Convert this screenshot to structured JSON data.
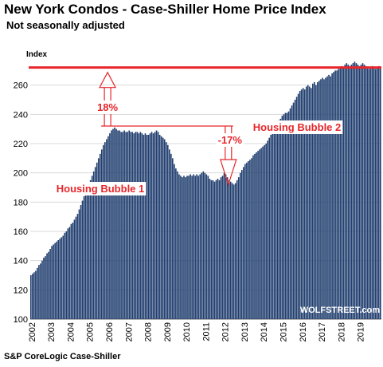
{
  "chart_data": {
    "type": "bar",
    "title": "New York Condos - Case-Shiller Home Price Index",
    "subtitle": "Not seasonally adjusted",
    "ylabel": "Index",
    "source": "S&P CoreLogic Case-Shiller",
    "watermark": "WOLFSTREET.com",
    "ylim": [
      100,
      280
    ],
    "yticks": [
      100,
      120,
      140,
      160,
      180,
      200,
      220,
      240,
      260
    ],
    "x_years": [
      "2002",
      "2003",
      "2004",
      "2005",
      "2006",
      "2007",
      "2008",
      "2009",
      "2010",
      "2011",
      "2012",
      "2013",
      "2014",
      "2015",
      "2016",
      "2017",
      "2018",
      "2019"
    ],
    "bar_color": "#1f3d6e",
    "x_start": "2002-01",
    "monthly_values": [
      130,
      131,
      132,
      133,
      135,
      137,
      138,
      140,
      142,
      143,
      145,
      146,
      148,
      150,
      151,
      152,
      153,
      154,
      155,
      156,
      157,
      159,
      160,
      162,
      163,
      165,
      166,
      168,
      170,
      172,
      175,
      178,
      181,
      184,
      186,
      189,
      192,
      195,
      198,
      201,
      204,
      207,
      210,
      213,
      216,
      219,
      221,
      223,
      225,
      227,
      229,
      230,
      231,
      230,
      229,
      229,
      228,
      228,
      229,
      228,
      228,
      229,
      228,
      228,
      227,
      228,
      228,
      227,
      228,
      227,
      226,
      227,
      226,
      226,
      227,
      228,
      227,
      228,
      229,
      228,
      226,
      225,
      224,
      223,
      221,
      219,
      216,
      213,
      210,
      206,
      203,
      201,
      199,
      198,
      197,
      198,
      197,
      198,
      198,
      199,
      198,
      199,
      198,
      199,
      198,
      199,
      200,
      201,
      200,
      199,
      198,
      196,
      195,
      195,
      194,
      195,
      196,
      195,
      197,
      198,
      200,
      199,
      197,
      195,
      194,
      193,
      192,
      193,
      195,
      197,
      200,
      202,
      204,
      206,
      207,
      208,
      209,
      210,
      212,
      213,
      214,
      215,
      216,
      217,
      218,
      219,
      220,
      222,
      224,
      226,
      228,
      230,
      232,
      234,
      236,
      237,
      239,
      240,
      241,
      241,
      242,
      244,
      246,
      248,
      250,
      252,
      254,
      256,
      257,
      258,
      257,
      259,
      260,
      259,
      258,
      261,
      262,
      260,
      262,
      263,
      264,
      265,
      264,
      265,
      266,
      267,
      266,
      268,
      269,
      270,
      270,
      271,
      272,
      273,
      272,
      274,
      275,
      274,
      273,
      274,
      275,
      276,
      275,
      274,
      273,
      274,
      275,
      274,
      273,
      272,
      271,
      272,
      273,
      272,
      271,
      272,
      273,
      272
    ],
    "reference_line": {
      "value": 272,
      "color": "#e8262b"
    },
    "annotations": [
      {
        "text": "18%",
        "color": "#e8262b"
      },
      {
        "text": "-17%",
        "color": "#e8262b"
      },
      {
        "text": "Housing Bubble 1",
        "color": "#e8262b"
      },
      {
        "text": "Housing Bubble 2",
        "color": "#e8262b"
      }
    ]
  }
}
